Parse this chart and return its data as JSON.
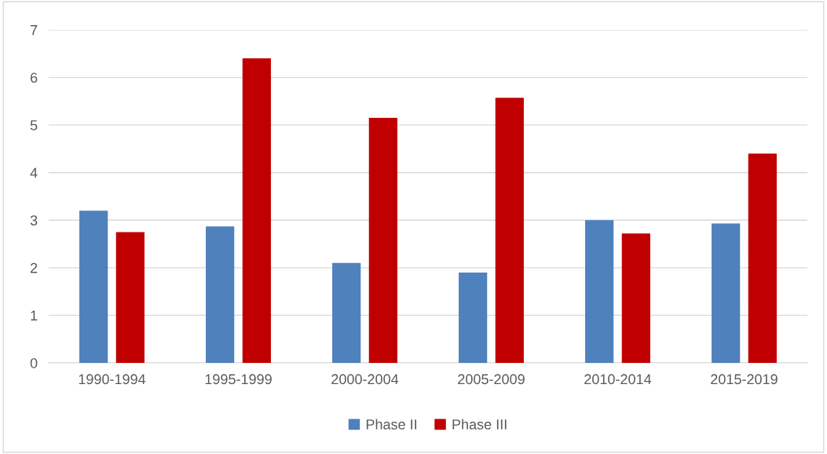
{
  "chart_data": {
    "type": "bar",
    "categories": [
      "1990-1994",
      "1995-1999",
      "2000-2004",
      "2005-2009",
      "2010-2014",
      "2015-2019"
    ],
    "series": [
      {
        "name": "Phase II",
        "color": "#4f81bd",
        "values": [
          3.2,
          2.87,
          2.1,
          1.9,
          3.0,
          2.93
        ]
      },
      {
        "name": "Phase III",
        "color": "#c00000",
        "values": [
          2.75,
          6.4,
          5.15,
          5.57,
          2.72,
          4.4
        ]
      }
    ],
    "ylim": [
      0,
      7
    ],
    "yticks": [
      0,
      1,
      2,
      3,
      4,
      5,
      6,
      7
    ],
    "grid": "y",
    "legend": "bottom"
  }
}
